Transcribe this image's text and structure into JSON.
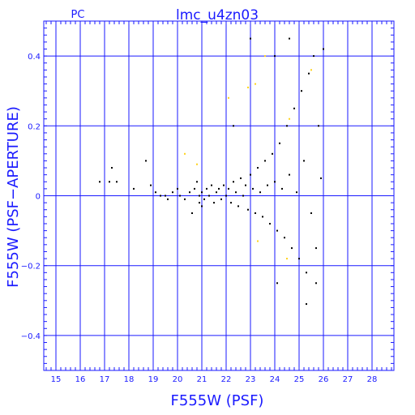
{
  "chart_data": {
    "type": "scatter",
    "title": "lmc_u4zn03",
    "corner_label": "PC",
    "xlabel": "F555W (PSF)",
    "ylabel": "F555W (PSF−APERTURE)",
    "xlim": [
      14.5,
      28.9
    ],
    "ylim": [
      -0.5,
      0.5
    ],
    "grid": true,
    "x_grid": [
      15,
      16,
      17,
      18,
      19,
      20,
      21,
      22,
      23,
      24,
      25,
      26,
      27,
      28
    ],
    "y_grid": [
      -0.4,
      -0.2,
      0,
      0.2,
      0.4
    ],
    "x_tick_labels": [
      "15",
      "16",
      "17",
      "18",
      "19",
      "20",
      "21",
      "22",
      "23",
      "24",
      "25",
      "26",
      "27",
      "28"
    ],
    "y_tick_labels": [
      "−0.4",
      "−0.2",
      "0",
      "0.2",
      "0.4"
    ],
    "colors": {
      "axis": "#1a1aff",
      "point": "#000000",
      "flagged": "#ffd21a"
    },
    "series": [
      {
        "values_description": "stars",
        "points": [
          [
            16.8,
            0.04
          ],
          [
            17.2,
            0.04
          ],
          [
            17.5,
            0.04
          ],
          [
            17.3,
            0.08
          ],
          [
            18.2,
            0.02
          ],
          [
            18.7,
            0.1
          ],
          [
            18.9,
            0.03
          ],
          [
            19.1,
            0.01
          ],
          [
            19.3,
            0.0
          ],
          [
            19.5,
            0.0
          ],
          [
            19.6,
            -0.01
          ],
          [
            19.8,
            0.01
          ],
          [
            20.0,
            0.02
          ],
          [
            20.1,
            0.0
          ],
          [
            20.3,
            -0.01
          ],
          [
            20.5,
            0.01
          ],
          [
            20.6,
            -0.05
          ],
          [
            20.7,
            0.02
          ],
          [
            20.8,
            0.04
          ],
          [
            20.9,
            0.0
          ],
          [
            21.0,
            0.01
          ],
          [
            21.1,
            -0.01
          ],
          [
            21.2,
            0.02
          ],
          [
            21.3,
            0.0
          ],
          [
            21.4,
            0.03
          ],
          [
            21.5,
            -0.02
          ],
          [
            21.6,
            0.01
          ],
          [
            21.7,
            0.02
          ],
          [
            21.8,
            -0.01
          ],
          [
            21.9,
            0.03
          ],
          [
            22.0,
            0.0
          ],
          [
            22.1,
            0.02
          ],
          [
            22.2,
            -0.02
          ],
          [
            22.3,
            0.04
          ],
          [
            22.4,
            0.01
          ],
          [
            22.5,
            -0.03
          ],
          [
            22.6,
            0.05
          ],
          [
            22.7,
            0.0
          ],
          [
            22.8,
            0.03
          ],
          [
            22.9,
            -0.04
          ],
          [
            23.0,
            0.06
          ],
          [
            23.1,
            0.02
          ],
          [
            23.2,
            -0.05
          ],
          [
            23.3,
            0.08
          ],
          [
            23.4,
            0.01
          ],
          [
            23.5,
            -0.06
          ],
          [
            23.6,
            0.1
          ],
          [
            23.7,
            0.03
          ],
          [
            23.8,
            -0.08
          ],
          [
            23.9,
            0.12
          ],
          [
            24.0,
            0.04
          ],
          [
            24.1,
            -0.1
          ],
          [
            24.2,
            0.15
          ],
          [
            24.3,
            0.02
          ],
          [
            24.4,
            -0.12
          ],
          [
            24.5,
            0.2
          ],
          [
            24.6,
            0.06
          ],
          [
            24.7,
            -0.15
          ],
          [
            24.8,
            0.25
          ],
          [
            24.9,
            0.01
          ],
          [
            25.0,
            -0.18
          ],
          [
            25.1,
            0.3
          ],
          [
            25.2,
            0.1
          ],
          [
            25.3,
            -0.22
          ],
          [
            25.4,
            0.35
          ],
          [
            25.5,
            -0.05
          ],
          [
            25.6,
            0.4
          ],
          [
            25.7,
            -0.15
          ],
          [
            25.8,
            0.2
          ],
          [
            25.9,
            0.05
          ],
          [
            26.0,
            0.42
          ],
          [
            25.7,
            -0.25
          ],
          [
            23.0,
            0.45
          ],
          [
            24.0,
            0.4
          ],
          [
            24.6,
            0.45
          ],
          [
            25.3,
            -0.31
          ],
          [
            24.1,
            -0.25
          ],
          [
            22.3,
            0.2
          ],
          [
            21.0,
            -0.03
          ],
          [
            20.9,
            -0.02
          ]
        ]
      },
      {
        "values_description": "flagged",
        "points": [
          [
            20.3,
            0.12
          ],
          [
            20.8,
            0.09
          ],
          [
            22.1,
            0.28
          ],
          [
            22.9,
            0.31
          ],
          [
            23.2,
            0.32
          ],
          [
            23.6,
            0.4
          ],
          [
            24.5,
            -0.18
          ],
          [
            25.5,
            0.36
          ],
          [
            23.3,
            -0.13
          ],
          [
            24.6,
            0.22
          ]
        ]
      }
    ]
  }
}
